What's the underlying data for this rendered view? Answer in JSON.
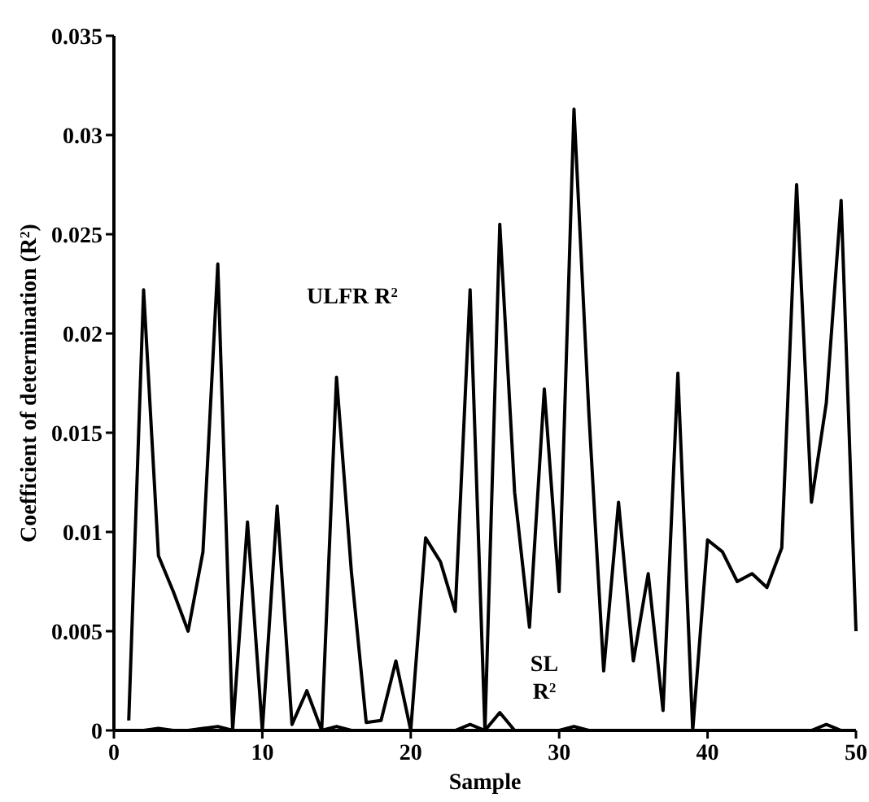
{
  "chart_data": {
    "type": "line",
    "xlabel": "Sample",
    "ylabel": "Coefficient of determination (R$^{2}$)",
    "x": [
      1,
      2,
      3,
      4,
      5,
      6,
      7,
      8,
      9,
      10,
      11,
      12,
      13,
      14,
      15,
      16,
      17,
      18,
      19,
      20,
      21,
      22,
      23,
      24,
      25,
      26,
      27,
      28,
      29,
      30,
      31,
      32,
      33,
      34,
      35,
      36,
      37,
      38,
      39,
      40,
      41,
      42,
      43,
      44,
      45,
      46,
      47,
      48,
      49,
      50
    ],
    "series": [
      {
        "color": "#000000",
        "values": [
          0.0005,
          0.0222,
          0.0088,
          0.007,
          0.005,
          0.009,
          0.0235,
          0,
          0.0105,
          0,
          0.0113,
          0.0003,
          0.002,
          0,
          0.0178,
          0.008,
          0.0004,
          0.0005,
          0.0035,
          0,
          0.0097,
          0.0085,
          0.006,
          0.0222,
          0,
          0.0255,
          0.012,
          0.0052,
          0.0172,
          0.007,
          0.0313,
          0.016,
          0.003,
          0.0115,
          0.0035,
          0.0079,
          0.001,
          0.018,
          0,
          0.0096,
          0.009,
          0.0075,
          0.0079,
          0.0072,
          0.0092,
          0.0275,
          0.0115,
          0.0165,
          0.0267,
          0.005
        ]
      },
      {
        "color": "#000000",
        "values": [
          0,
          0,
          0.0001,
          0,
          0,
          0.0001,
          0.0002,
          0,
          0,
          0,
          0,
          0,
          0,
          0,
          0.0002,
          0,
          0,
          0,
          0,
          0,
          0,
          0,
          0,
          0.0003,
          0,
          0.0009,
          0,
          0,
          0,
          0,
          0.0002,
          0,
          0,
          0,
          0,
          0,
          0,
          0,
          0,
          0,
          0,
          0,
          0,
          0,
          0,
          0,
          0,
          0.0003,
          0,
          0
        ]
      }
    ],
    "xlim": [
      0,
      50
    ],
    "xticks": [
      0,
      10,
      20,
      30,
      40,
      50
    ],
    "ylim": [
      0,
      0.035
    ],
    "yticks": [
      0,
      0.005,
      0.01,
      0.015,
      0.02,
      0.025,
      0.03,
      0.035
    ],
    "annotations": [
      "ULFR R$^{2}$",
      "SL R$^{2}$"
    ],
    "grid": false,
    "marker": "none",
    "line_style": "solid"
  }
}
